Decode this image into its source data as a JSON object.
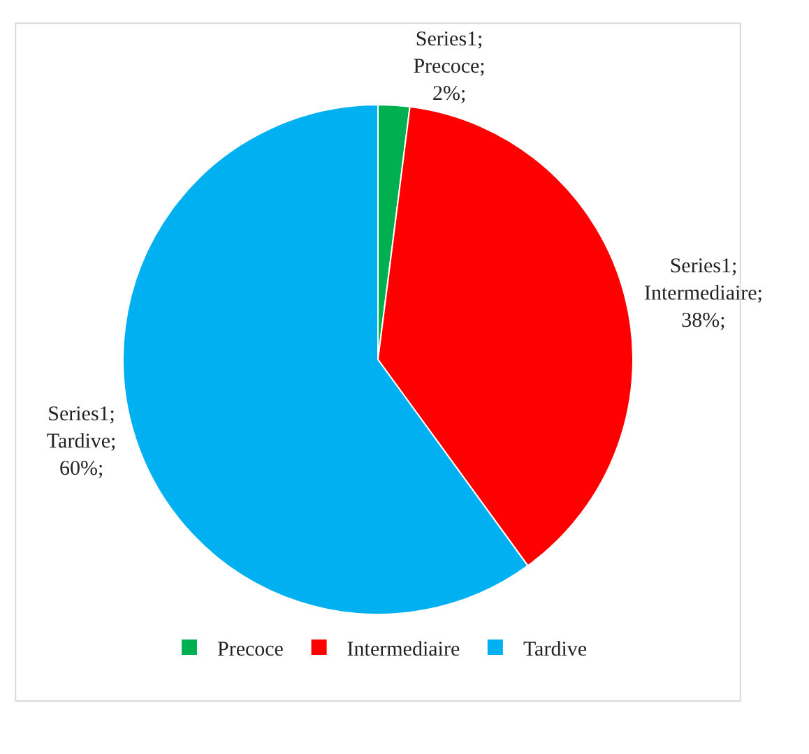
{
  "chart_data": {
    "type": "pie",
    "categories": [
      "Precoce",
      "Intermediaire",
      "Tardive"
    ],
    "values": [
      2,
      38,
      60
    ],
    "colors": [
      "#00b050",
      "#ff0000",
      "#00b0f0"
    ],
    "value_labels": [
      "Series1; Precoce; 2%;",
      "Series1; Intermediaire; 38%;",
      "Series1; Tardive; 60%;"
    ],
    "legend": "bottom"
  }
}
